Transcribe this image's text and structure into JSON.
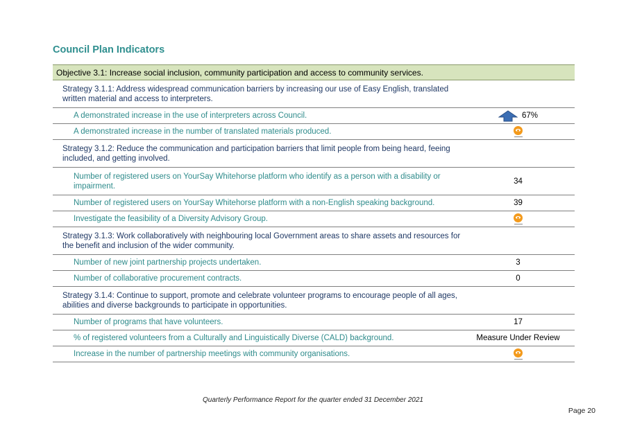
{
  "title": "Council Plan Indicators",
  "objective": "Objective 3.1: Increase social inclusion, community participation and access to community services.",
  "rows": [
    {
      "type": "strategy",
      "text": "Strategy 3.1.1: Address widespread communication barriers by increasing our use of Easy English, translated written material and access to interpreters."
    },
    {
      "type": "indicator",
      "text": "A demonstrated increase in the use of interpreters across Council.",
      "value": "67%",
      "icon": "arrow-up-icon"
    },
    {
      "type": "indicator",
      "text": "A demonstrated increase in the number of translated materials produced.",
      "icon": "monitor-icon"
    },
    {
      "type": "strategy",
      "text": "Strategy 3.1.2: Reduce the communication and participation barriers that limit people from being heard, feeing included, and getting involved."
    },
    {
      "type": "indicator",
      "text": "Number of registered users on YourSay Whitehorse platform who identify as a person with a disability or impairment.",
      "value": "34"
    },
    {
      "type": "indicator",
      "text": "Number of registered users on YourSay Whitehorse platform with a non-English speaking background.",
      "value": "39"
    },
    {
      "type": "indicator",
      "text": "Investigate the feasibility of a Diversity Advisory Group.",
      "icon": "monitor-icon"
    },
    {
      "type": "strategy",
      "text": "Strategy 3.1.3: Work collaboratively with neighbouring local Government areas to share assets and resources for the benefit and inclusion of the wider community."
    },
    {
      "type": "indicator",
      "text": "Number of new joint partnership projects undertaken.",
      "value": "3"
    },
    {
      "type": "indicator",
      "text": "Number of collaborative procurement contracts.",
      "value": "0"
    },
    {
      "type": "strategy",
      "text": "Strategy 3.1.4: Continue to support, promote and celebrate volunteer programs to encourage people of all ages, abilities and diverse backgrounds to participate in opportunities."
    },
    {
      "type": "indicator",
      "text": "Number of programs that have volunteers.",
      "value": "17"
    },
    {
      "type": "indicator",
      "text": "% of registered volunteers from a Culturally and Linguistically Diverse (CALD) background.",
      "value": "Measure Under Review"
    },
    {
      "type": "indicator",
      "text": "Increase in the number of partnership meetings with community organisations.",
      "icon": "monitor-icon"
    }
  ],
  "footer": "Quarterly Performance Report for the quarter ended 31 December 2021",
  "page": "Page 20",
  "colors": {
    "title": "#2f8f8f",
    "objective_bg": "#d7e4bd",
    "strategy_text": "#1f3864",
    "indicator_text": "#2e8b8b",
    "monitor_icon": "#f39a1c",
    "arrow_up": "#3c6eb4"
  }
}
